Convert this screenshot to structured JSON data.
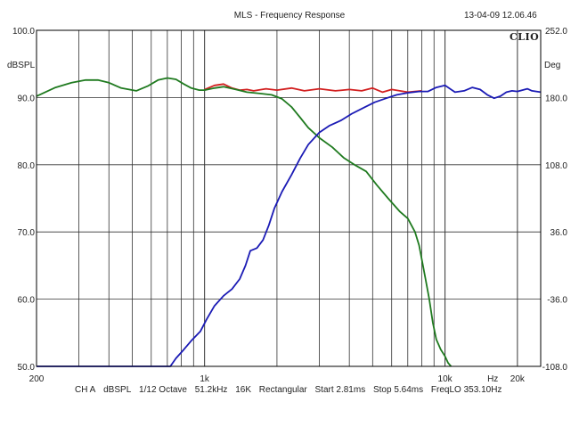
{
  "header": {
    "title": "MLS - Frequency Response",
    "timestamp": "13-04-09 12.06.46",
    "logo": "CLIO"
  },
  "footer": {
    "channel": "CH A",
    "unit": "dBSPL",
    "smoothing": "1/12 Octave",
    "sample_rate": "51.2kHz",
    "size": "16K",
    "window": "Rectangular",
    "start": "Start 2.81ms",
    "stop": "Stop 5.64ms",
    "freqlo": "FreqLO 353.10Hz"
  },
  "chart_data": {
    "type": "line",
    "title": "MLS - Frequency Response",
    "xlabel": "Hz",
    "ylabel": "dBSPL",
    "y2label": "Deg",
    "x_scale": "log",
    "xlim": [
      200,
      25000
    ],
    "ylim": [
      50,
      100
    ],
    "y2lim": [
      -108,
      252
    ],
    "grid": true,
    "x_tick_labels": [
      {
        "value": 200,
        "label": "200"
      },
      {
        "value": 1000,
        "label": "1k"
      },
      {
        "value": 10000,
        "label": "10k"
      },
      {
        "value": 15800,
        "label": "Hz"
      },
      {
        "value": 20000,
        "label": "20k"
      }
    ],
    "y_tick_labels": [
      "50.0",
      "60.0",
      "70.0",
      "80.0",
      "90.0",
      "100.0"
    ],
    "y2_tick_labels": [
      "-108.0",
      "-36.0",
      "36.0",
      "108.0",
      "180.0",
      "252.0"
    ],
    "colors": {
      "red": "#d21f1f",
      "green": "#1f7a1f",
      "blue": "#1b1bb5",
      "axis": "#000000",
      "grid": "#333333"
    },
    "series": [
      {
        "color": "red",
        "points": [
          [
            1000,
            91.2
          ],
          [
            1100,
            91.8
          ],
          [
            1200,
            92.0
          ],
          [
            1300,
            91.4
          ],
          [
            1400,
            91.1
          ],
          [
            1500,
            91.2
          ],
          [
            1600,
            91.0
          ],
          [
            1800,
            91.3
          ],
          [
            2000,
            91.1
          ],
          [
            2300,
            91.4
          ],
          [
            2600,
            91.0
          ],
          [
            3000,
            91.3
          ],
          [
            3500,
            91.0
          ],
          [
            4000,
            91.2
          ],
          [
            4500,
            91.0
          ],
          [
            5000,
            91.4
          ],
          [
            5500,
            90.8
          ],
          [
            6000,
            91.2
          ],
          [
            7000,
            90.8
          ],
          [
            8000,
            91.0
          ]
        ]
      },
      {
        "color": "green",
        "points": [
          [
            200,
            90.2
          ],
          [
            240,
            91.5
          ],
          [
            280,
            92.2
          ],
          [
            320,
            92.6
          ],
          [
            360,
            92.6
          ],
          [
            400,
            92.2
          ],
          [
            450,
            91.4
          ],
          [
            520,
            91.0
          ],
          [
            580,
            91.7
          ],
          [
            640,
            92.6
          ],
          [
            700,
            92.9
          ],
          [
            760,
            92.7
          ],
          [
            820,
            92.0
          ],
          [
            880,
            91.4
          ],
          [
            950,
            91.1
          ],
          [
            1000,
            91.1
          ],
          [
            1100,
            91.4
          ],
          [
            1200,
            91.6
          ],
          [
            1350,
            91.2
          ],
          [
            1500,
            90.8
          ],
          [
            1700,
            90.6
          ],
          [
            1900,
            90.4
          ],
          [
            2100,
            89.8
          ],
          [
            2300,
            88.6
          ],
          [
            2500,
            87.0
          ],
          [
            2700,
            85.5
          ],
          [
            3000,
            84.0
          ],
          [
            3400,
            82.6
          ],
          [
            3800,
            81.0
          ],
          [
            4200,
            80.0
          ],
          [
            4700,
            79.0
          ],
          [
            5200,
            77.0
          ],
          [
            5800,
            75.0
          ],
          [
            6500,
            73.0
          ],
          [
            7000,
            72.0
          ],
          [
            7500,
            70.0
          ],
          [
            7800,
            68.0
          ],
          [
            8000,
            66.0
          ],
          [
            8300,
            63.0
          ],
          [
            8600,
            60.0
          ],
          [
            8900,
            56.5
          ],
          [
            9200,
            54.0
          ],
          [
            9600,
            52.5
          ],
          [
            10000,
            51.5
          ],
          [
            10300,
            50.5
          ],
          [
            10600,
            50.0
          ]
        ]
      },
      {
        "color": "blue",
        "points": [
          [
            200,
            50.0
          ],
          [
            600,
            50.0
          ],
          [
            720,
            50.0
          ],
          [
            760,
            51.2
          ],
          [
            820,
            52.5
          ],
          [
            880,
            53.8
          ],
          [
            960,
            55.2
          ],
          [
            1020,
            57.0
          ],
          [
            1100,
            59.0
          ],
          [
            1200,
            60.5
          ],
          [
            1300,
            61.5
          ],
          [
            1400,
            63.0
          ],
          [
            1480,
            65.0
          ],
          [
            1550,
            67.2
          ],
          [
            1650,
            67.6
          ],
          [
            1750,
            68.8
          ],
          [
            1850,
            71.0
          ],
          [
            1950,
            73.5
          ],
          [
            2100,
            76.0
          ],
          [
            2300,
            78.5
          ],
          [
            2500,
            81.0
          ],
          [
            2700,
            83.0
          ],
          [
            3000,
            84.8
          ],
          [
            3300,
            85.8
          ],
          [
            3700,
            86.6
          ],
          [
            4100,
            87.6
          ],
          [
            4600,
            88.5
          ],
          [
            5100,
            89.3
          ],
          [
            5700,
            89.9
          ],
          [
            6300,
            90.4
          ],
          [
            7000,
            90.7
          ],
          [
            7800,
            90.9
          ],
          [
            8500,
            90.9
          ],
          [
            9200,
            91.5
          ],
          [
            10000,
            91.8
          ],
          [
            11000,
            90.8
          ],
          [
            12000,
            91.0
          ],
          [
            13000,
            91.5
          ],
          [
            14000,
            91.2
          ],
          [
            15000,
            90.4
          ],
          [
            16000,
            89.9
          ],
          [
            17000,
            90.2
          ],
          [
            18000,
            90.8
          ],
          [
            19000,
            91.0
          ],
          [
            20000,
            90.9
          ],
          [
            22000,
            91.3
          ],
          [
            23000,
            91.0
          ],
          [
            25000,
            90.8
          ]
        ]
      }
    ]
  }
}
